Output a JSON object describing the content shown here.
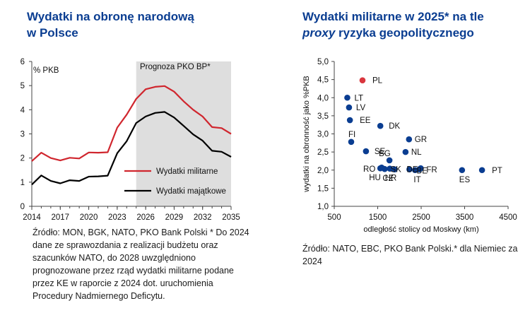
{
  "left": {
    "title_line1": "Wydatki na obronę narodową",
    "title_line2": "w Polsce",
    "source": "Źródło: MON, BGK, NATO, PKO Bank Polski * Do 2024 dane ze sprawozdania z realizacji budżetu oraz szacunków NATO, do 2028 uwzględniono prognozowane przez rząd wydatki militarne podane przez KE w raporcie z 2024 dot. uruchomienia Procedury Nadmiernego Deficytu."
  },
  "right": {
    "title_line1": "Wydatki militarne w 2025* na tle",
    "title_line2_italic": "proxy",
    "title_line2_rest": " ryzyka geopolitycznego",
    "source": "Źródło: NATO, EBC, PKO Bank Polski.* dla Niemiec za 2024"
  },
  "colors": {
    "title": "#0a3d91",
    "military": "#d0262e",
    "asset": "#000000",
    "forecast_shade": "#dedede",
    "dot": "#0a3d91",
    "dot_highlight": "#d9363e"
  },
  "chart_data": [
    {
      "type": "line",
      "ylabel": "% PKB",
      "ylim": [
        0,
        6
      ],
      "xlim": [
        2014,
        2035
      ],
      "x_ticks": [
        "2014",
        "2017",
        "2020",
        "2023",
        "2026",
        "2029",
        "2032",
        "2035"
      ],
      "y_ticks": [
        "0",
        "1",
        "2",
        "3",
        "4",
        "5",
        "6"
      ],
      "shade_label": "Prognoza PKO BP*",
      "shade_range": [
        2025,
        2035
      ],
      "x": [
        2014,
        2015,
        2016,
        2017,
        2018,
        2019,
        2020,
        2021,
        2022,
        2023,
        2024,
        2025,
        2026,
        2027,
        2028,
        2029,
        2030,
        2031,
        2032,
        2033,
        2034,
        2035
      ],
      "series": [
        {
          "name": "Wydatki militarne",
          "values": [
            1.87,
            2.22,
            2.0,
            1.9,
            2.01,
            1.98,
            2.23,
            2.22,
            2.24,
            3.26,
            3.8,
            4.45,
            4.85,
            4.95,
            4.98,
            4.75,
            4.35,
            4.0,
            3.72,
            3.28,
            3.24,
            3.0
          ]
        },
        {
          "name": "Wydatki majątkowe",
          "values": [
            0.9,
            1.28,
            1.05,
            0.95,
            1.08,
            1.05,
            1.23,
            1.24,
            1.27,
            2.2,
            2.7,
            3.45,
            3.72,
            3.87,
            3.91,
            3.68,
            3.33,
            2.98,
            2.72,
            2.3,
            2.26,
            2.05
          ]
        }
      ]
    },
    {
      "type": "scatter",
      "xlabel": "odległość stolicy od Moskwy (km)",
      "ylabel": "wydatki na obronność jako %PKB",
      "xlim": [
        500,
        4500
      ],
      "ylim": [
        1.0,
        5.0
      ],
      "x_ticks": [
        "500",
        "1500",
        "2500",
        "3500",
        "4500"
      ],
      "y_ticks": [
        "1,0",
        "1,5",
        "2,0",
        "2,5",
        "3,0",
        "3,5",
        "4,0",
        "4,5",
        "5,0"
      ],
      "points": [
        {
          "label": "PL",
          "x": 1150,
          "y": 4.48,
          "highlight": true
        },
        {
          "label": "LT",
          "x": 800,
          "y": 4.0
        },
        {
          "label": "LV",
          "x": 840,
          "y": 3.73
        },
        {
          "label": "EE",
          "x": 860,
          "y": 3.38
        },
        {
          "label": "DK",
          "x": 1560,
          "y": 3.22
        },
        {
          "label": "FI",
          "x": 890,
          "y": 2.78
        },
        {
          "label": "SE",
          "x": 1230,
          "y": 2.52
        },
        {
          "label": "GR",
          "x": 2220,
          "y": 2.85
        },
        {
          "label": "NL",
          "x": 2140,
          "y": 2.5
        },
        {
          "label": "BG",
          "x": 1770,
          "y": 2.27
        },
        {
          "label": "RO",
          "x": 1590,
          "y": 2.07
        },
        {
          "label": "HU",
          "x": 1560,
          "y": 2.05
        },
        {
          "label": "CZ",
          "x": 1660,
          "y": 2.03
        },
        {
          "label": "HR",
          "x": 1780,
          "y": 2.04
        },
        {
          "label": "SK",
          "x": 1890,
          "y": 2.02
        },
        {
          "label": "DE",
          "x": 2230,
          "y": 2.02
        },
        {
          "label": "IT",
          "x": 2360,
          "y": 2.0
        },
        {
          "label": "BE",
          "x": 2460,
          "y": 2.02
        },
        {
          "label": "FR",
          "x": 2490,
          "y": 2.05
        },
        {
          "label": "ES",
          "x": 3440,
          "y": 2.0
        },
        {
          "label": "PT",
          "x": 3900,
          "y": 2.0
        }
      ]
    }
  ]
}
